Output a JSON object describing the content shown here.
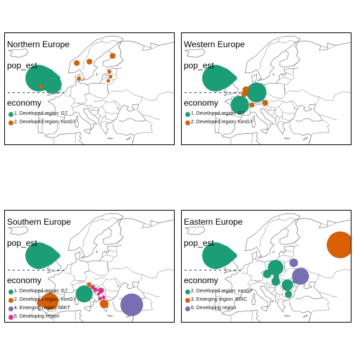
{
  "colors": {
    "developed_g7": "#1b9e77",
    "developed_nong7": "#d95f02",
    "emerging_bric": "#7570b3",
    "emerging_mikt": "#7570b3",
    "developing": "#e7298a",
    "developing_east": "#7570b3",
    "land_stroke": "#666666",
    "border": "#000000"
  },
  "panels": [
    {
      "title": "Northern Europe",
      "size_legend_title": "pop_est",
      "color_legend_title": "economy",
      "legend": [
        {
          "label": "1. Developed region: G7",
          "color": "#1b9e77"
        },
        {
          "label": "2. Developed region: nonG7",
          "color": "#d95f02"
        }
      ],
      "bubbles": [
        {
          "color": "#1b9e77",
          "lon": -2.5,
          "lat": 54.0,
          "r": 13
        },
        {
          "color": "#d95f02",
          "lon": 15.0,
          "lat": 62.0,
          "r": 4
        },
        {
          "color": "#d95f02",
          "lon": 26.0,
          "lat": 64.0,
          "r": 4
        },
        {
          "color": "#d95f02",
          "lon": 9.0,
          "lat": 61.5,
          "r": 4
        },
        {
          "color": "#d95f02",
          "lon": 10.0,
          "lat": 56.0,
          "r": 3
        },
        {
          "color": "#d95f02",
          "lon": 24.5,
          "lat": 58.5,
          "r": 2.5
        },
        {
          "color": "#d95f02",
          "lon": 25.0,
          "lat": 56.8,
          "r": 2.5
        },
        {
          "color": "#d95f02",
          "lon": 23.9,
          "lat": 55.3,
          "r": 2.5
        },
        {
          "color": "#d95f02",
          "lon": -8.0,
          "lat": 53.3,
          "r": 3
        }
      ]
    },
    {
      "title": "Western Europe",
      "size_legend_title": "pop_est",
      "color_legend_title": "economy",
      "legend": [
        {
          "label": "1. Developed region: G7",
          "color": "#1b9e77"
        },
        {
          "label": "2. Developed region: nonG7",
          "color": "#d95f02"
        }
      ],
      "bubbles": [
        {
          "color": "#1b9e77",
          "lon": 10.4,
          "lat": 51.2,
          "r": 14
        },
        {
          "color": "#1b9e77",
          "lon": 2.5,
          "lat": 46.8,
          "r": 13
        },
        {
          "color": "#d95f02",
          "lon": 5.3,
          "lat": 52.2,
          "r": 4.5
        },
        {
          "color": "#d95f02",
          "lon": 4.6,
          "lat": 50.6,
          "r": 4
        },
        {
          "color": "#d95f02",
          "lon": 14.5,
          "lat": 47.6,
          "r": 4
        },
        {
          "color": "#d95f02",
          "lon": 8.2,
          "lat": 46.8,
          "r": 3.5
        }
      ]
    },
    {
      "title": "Southern Europe",
      "size_legend_title": "pop_est",
      "color_legend_title": "economy",
      "legend": [
        {
          "label": "1. Developed region: G7",
          "color": "#1b9e77"
        },
        {
          "label": "2. Developed region: nonG7",
          "color": "#d95f02"
        },
        {
          "label": "4. Emerging region: MIKT",
          "color": "#7570b3"
        },
        {
          "label": "6. Developing region",
          "color": "#e7298a"
        }
      ],
      "bubbles": [
        {
          "color": "#d95f02",
          "lon": -3.7,
          "lat": 40.2,
          "r": 12
        },
        {
          "color": "#1b9e77",
          "lon": 12.5,
          "lat": 42.8,
          "r": 12
        },
        {
          "color": "#7570b3",
          "lon": 35.0,
          "lat": 39.0,
          "r": 16
        },
        {
          "color": "#d95f02",
          "lon": 22.0,
          "lat": 39.3,
          "r": 6
        },
        {
          "color": "#d95f02",
          "lon": -8.2,
          "lat": 39.6,
          "r": 5
        },
        {
          "color": "#e7298a",
          "lon": 20.5,
          "lat": 44.0,
          "r": 4
        },
        {
          "color": "#e7298a",
          "lon": 17.8,
          "lat": 44.2,
          "r": 3
        },
        {
          "color": "#e7298a",
          "lon": 20.0,
          "lat": 41.2,
          "r": 2.5
        },
        {
          "color": "#e7298a",
          "lon": 21.7,
          "lat": 41.6,
          "r": 2.5
        },
        {
          "color": "#e7298a",
          "lon": 16.5,
          "lat": 45.2,
          "r": 3
        },
        {
          "color": "#e7298a",
          "lon": 19.3,
          "lat": 42.8,
          "r": 2
        },
        {
          "color": "#d95f02",
          "lon": 14.8,
          "lat": 46.1,
          "r": 3
        }
      ]
    },
    {
      "title": "Eastern Europe",
      "size_legend_title": "pop_est",
      "color_legend_title": "economy",
      "legend": [
        {
          "label": "2. Developed region: nonG7",
          "color": "#1b9e77"
        },
        {
          "label": "3. Emerging region: BRIC",
          "color": "#d95f02"
        },
        {
          "label": "6. Developing region",
          "color": "#7570b3"
        }
      ],
      "bubbles": [
        {
          "color": "#d95f02",
          "lon": 50.0,
          "lat": 60.0,
          "r": 19
        },
        {
          "color": "#1b9e77",
          "lon": 19.4,
          "lat": 52.0,
          "r": 11
        },
        {
          "color": "#7570b3",
          "lon": 31.2,
          "lat": 49.0,
          "r": 12
        },
        {
          "color": "#7570b3",
          "lon": 28.0,
          "lat": 53.7,
          "r": 6
        },
        {
          "color": "#1b9e77",
          "lon": 25.0,
          "lat": 45.9,
          "r": 8
        },
        {
          "color": "#1b9e77",
          "lon": 15.5,
          "lat": 49.8,
          "r": 6
        },
        {
          "color": "#1b9e77",
          "lon": 19.5,
          "lat": 47.2,
          "r": 6
        },
        {
          "color": "#1b9e77",
          "lon": 25.5,
          "lat": 42.7,
          "r": 5
        },
        {
          "color": "#1b9e77",
          "lon": 19.7,
          "lat": 48.7,
          "r": 4
        },
        {
          "color": "#7570b3",
          "lon": 28.5,
          "lat": 47.2,
          "r": 3
        }
      ]
    }
  ]
}
